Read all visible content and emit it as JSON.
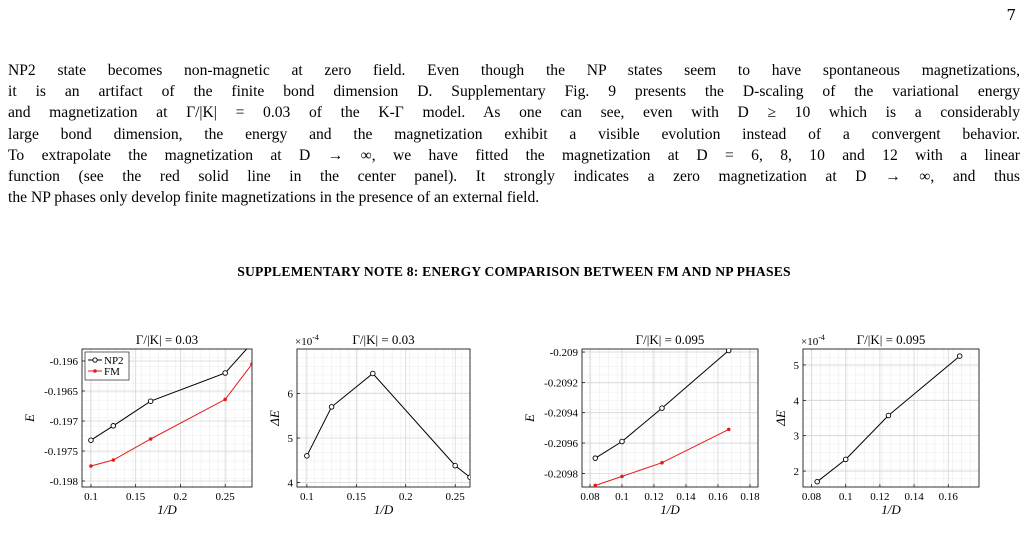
{
  "page_number": "7",
  "paragraph_lines": [
    "NP2 state becomes non-magnetic at zero field. Even though the NP states seem to have spontaneous magnetizations,",
    "it is an artifact of the finite bond dimension D. Supplementary Fig. 9 presents the D-scaling of the variational energy",
    "and magnetization at Γ/|K| = 0.03 of the K-Γ model. As one can see, even with D ≥ 10 which is a considerably",
    "large bond dimension, the energy and the magnetization exhibit a visible evolution instead of a convergent behavior.",
    "To extrapolate the magnetization at D → ∞, we have fitted the magnetization at D = 6, 8, 10 and 12 with a linear",
    "function (see the red solid line in the center panel). It strongly indicates a zero magnetization at D → ∞, and thus",
    "the NP phases only develop finite magnetizations in the presence of an external field."
  ],
  "section_heading": "SUPPLEMENTARY NOTE 8: ENERGY COMPARISON BETWEEN FM AND NP PHASES",
  "chart_data": [
    {
      "type": "line",
      "title": "Γ/|K| = 0.03",
      "xlabel": "1/D",
      "ylabel": "E",
      "xlim": [
        0.09,
        0.28
      ],
      "ylim": [
        -0.1981,
        -0.1958
      ],
      "xticks": [
        0.1,
        0.15,
        0.2,
        0.25
      ],
      "xtick_labels": [
        "0.1",
        "0.15",
        "0.2",
        "0.25"
      ],
      "yticks": [
        -0.198,
        -0.1975,
        -0.197,
        -0.1965,
        -0.196
      ],
      "ytick_labels": [
        "-0.198",
        "-0.1975",
        "-0.197",
        "-0.1965",
        "-0.196"
      ],
      "exponent": "",
      "legend": "top-left",
      "series": [
        {
          "name": "NP2",
          "color": "#000000",
          "marker": "circle",
          "x": [
            0.1,
            0.125,
            0.1667,
            0.25,
            0.28
          ],
          "y": [
            -0.19732,
            -0.19708,
            -0.19667,
            -0.1962,
            -0.1957
          ]
        },
        {
          "name": "FM",
          "color": "#e41a1c",
          "marker": "dot",
          "x": [
            0.1,
            0.125,
            0.1667,
            0.25,
            0.28
          ],
          "y": [
            -0.19775,
            -0.19765,
            -0.1973,
            -0.19664,
            -0.19605
          ]
        }
      ]
    },
    {
      "type": "line",
      "title": "Γ/|K| = 0.03",
      "xlabel": "1/D",
      "ylabel": "ΔE",
      "xlim": [
        0.09,
        0.265
      ],
      "ylim": [
        3.9,
        7.0
      ],
      "xticks": [
        0.1,
        0.15,
        0.2,
        0.25
      ],
      "xtick_labels": [
        "0.1",
        "0.15",
        "0.2",
        "0.25"
      ],
      "yticks": [
        4,
        5,
        6
      ],
      "ytick_labels": [
        "4",
        "5",
        "6"
      ],
      "exponent": "-4",
      "legend": "",
      "series": [
        {
          "name": "",
          "color": "#000000",
          "marker": "circle",
          "x": [
            0.1,
            0.125,
            0.1667,
            0.25,
            0.265
          ],
          "y": [
            4.6,
            5.7,
            6.45,
            4.38,
            4.12
          ]
        }
      ]
    },
    {
      "type": "line",
      "title": "Γ/|K| = 0.095",
      "xlabel": "1/D",
      "ylabel": "E",
      "xlim": [
        0.075,
        0.185
      ],
      "ylim": [
        -0.20989,
        -0.20898
      ],
      "xticks": [
        0.08,
        0.1,
        0.12,
        0.14,
        0.16,
        0.18
      ],
      "xtick_labels": [
        "0.08",
        "0.1",
        "0.12",
        "0.14",
        "0.16",
        "0.18"
      ],
      "yticks": [
        -0.2098,
        -0.2096,
        -0.2094,
        -0.2092,
        -0.209
      ],
      "ytick_labels": [
        "-0.2098",
        "-0.2096",
        "-0.2094",
        "-0.2092",
        "-0.209"
      ],
      "exponent": "",
      "legend": "",
      "series": [
        {
          "name": "",
          "color": "#000000",
          "marker": "circle",
          "x": [
            0.0833,
            0.1,
            0.125,
            0.1667
          ],
          "y": [
            -0.2097,
            -0.20959,
            -0.20937,
            -0.20899
          ]
        },
        {
          "name": "",
          "color": "#e41a1c",
          "marker": "dot",
          "x": [
            0.0833,
            0.1,
            0.125,
            0.1667
          ],
          "y": [
            -0.20988,
            -0.20982,
            -0.20973,
            -0.20951
          ]
        }
      ]
    },
    {
      "type": "line",
      "title": "Γ/|K| = 0.095",
      "xlabel": "1/D",
      "ylabel": "ΔE",
      "xlim": [
        0.075,
        0.178
      ],
      "ylim": [
        1.55,
        5.45
      ],
      "xticks": [
        0.08,
        0.1,
        0.12,
        0.14,
        0.16
      ],
      "xtick_labels": [
        "0.08",
        "0.1",
        "0.12",
        "0.14",
        "0.16"
      ],
      "yticks": [
        2,
        3,
        4,
        5
      ],
      "ytick_labels": [
        "2",
        "3",
        "4",
        "5"
      ],
      "exponent": "-4",
      "legend": "",
      "series": [
        {
          "name": "",
          "color": "#000000",
          "marker": "circle",
          "x": [
            0.0833,
            0.1,
            0.125,
            0.1667
          ],
          "y": [
            1.7,
            2.33,
            3.57,
            5.25
          ]
        }
      ]
    }
  ]
}
